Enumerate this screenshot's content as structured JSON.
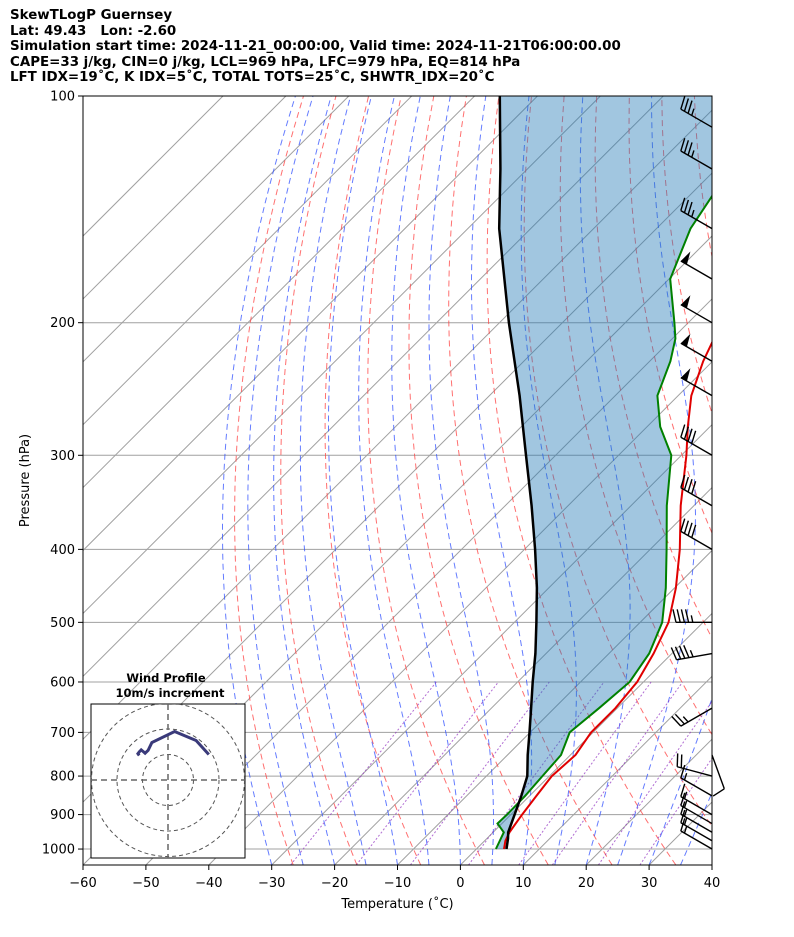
{
  "header": {
    "lines": [
      "SkewTLogP Guernsey",
      "Lat: 49.43   Lon: -2.60",
      "Simulation start time: 2024-11-21_00:00:00, Valid time: 2024-11-21T06:00:00.00",
      "CAPE=33 j/kg, CIN=0 j/kg, LCL=969 hPa, LFC=979 hPa, EQ=814 hPa",
      "LFT IDX=19˚C, K IDX=5˚C, TOTAL TOTS=25˚C, SHWTR_IDX=20˚C"
    ]
  },
  "chart_data": [
    {
      "type": "line",
      "title": "SkewTLogP Guernsey",
      "xlabel": "Temperature (˚C)",
      "ylabel": "Pressure (hPa)",
      "xlim": [
        -60,
        40
      ],
      "ylim": [
        1050,
        100
      ],
      "y_scale": "log",
      "skew": "skew-T (isotherms slanted 45°)",
      "grid": true,
      "xticks": [
        "−60",
        "−50",
        "−40",
        "−30",
        "−20",
        "−10",
        "0",
        "10",
        "20",
        "30",
        "40"
      ],
      "yticks": [
        "100",
        "200",
        "300",
        "400",
        "500",
        "600",
        "700",
        "800",
        "900",
        "1000"
      ],
      "colors": {
        "temperature": "#e00000",
        "dewpoint": "#008000",
        "parcel": "#000000",
        "cape_fill": "#1f77b4",
        "dry_adiabat": "#ff4040",
        "moist_adiabat": "#3050ff",
        "mixing_ratio": "#9030c0",
        "isotherm": "#a0a0a0",
        "hodograph": "#3a3a7a"
      },
      "series": [
        {
          "key": "temperature",
          "points": [
            [
              1000,
              4.4
            ],
            [
              975,
              3.3
            ],
            [
              950,
              2.6
            ],
            [
              925,
              2.2
            ],
            [
              900,
              1.8
            ],
            [
              850,
              1.1
            ],
            [
              800,
              0.4
            ],
            [
              750,
              0.8
            ],
            [
              700,
              -0.3
            ],
            [
              650,
              -0.3
            ],
            [
              600,
              -1.0
            ],
            [
              550,
              -2.9
            ],
            [
              500,
              -5.5
            ],
            [
              450,
              -9.8
            ],
            [
              400,
              -15.3
            ],
            [
              350,
              -22.1
            ],
            [
              300,
              -29.2
            ],
            [
              275,
              -33.5
            ],
            [
              250,
              -37.9
            ],
            [
              225,
              -41.5
            ],
            [
              200,
              -44.7
            ],
            [
              175,
              -46.5
            ],
            [
              150,
              -50.5
            ],
            [
              125,
              -55.2
            ],
            [
              100,
              -60.0
            ]
          ]
        },
        {
          "key": "dewpoint",
          "points": [
            [
              1000,
              3.1
            ],
            [
              950,
              1.7
            ],
            [
              925,
              -0.7
            ],
            [
              900,
              -0.6
            ],
            [
              850,
              -0.7
            ],
            [
              800,
              -1.1
            ],
            [
              750,
              -1.5
            ],
            [
              700,
              -3.7
            ],
            [
              650,
              -2.9
            ],
            [
              600,
              -2.2
            ],
            [
              550,
              -3.6
            ],
            [
              500,
              -6.5
            ],
            [
              450,
              -11.4
            ],
            [
              400,
              -17.4
            ],
            [
              350,
              -24.3
            ],
            [
              300,
              -31.6
            ],
            [
              275,
              -37.9
            ],
            [
              250,
              -43.3
            ],
            [
              225,
              -46.7
            ],
            [
              210,
              -49.5
            ],
            [
              200,
              -52.2
            ],
            [
              175,
              -59.8
            ],
            [
              150,
              -64.6
            ],
            [
              125,
              -67.8
            ],
            [
              100,
              -70.0
            ]
          ]
        },
        {
          "key": "parcel",
          "points": [
            [
              1000,
              4.8
            ],
            [
              969,
              3.4
            ],
            [
              950,
              2.4
            ],
            [
              900,
              0.6
            ],
            [
              850,
              -1.3
            ],
            [
              800,
              -3.5
            ],
            [
              750,
              -6.8
            ],
            [
              700,
              -10.1
            ],
            [
              650,
              -13.7
            ],
            [
              600,
              -17.6
            ],
            [
              550,
              -21.7
            ],
            [
              500,
              -26.5
            ],
            [
              450,
              -31.9
            ],
            [
              400,
              -38.3
            ],
            [
              350,
              -45.8
            ],
            [
              300,
              -54.7
            ],
            [
              250,
              -65.2
            ],
            [
              200,
              -78.5
            ],
            [
              150,
              -95.0
            ],
            [
              125,
              -104.3
            ],
            [
              100,
              -116.0
            ]
          ]
        }
      ],
      "winds": [
        {
          "p": 1000,
          "speed": 15,
          "dir": 300
        },
        {
          "p": 975,
          "speed": 15,
          "dir": 300
        },
        {
          "p": 950,
          "speed": 15,
          "dir": 300
        },
        {
          "p": 925,
          "speed": 15,
          "dir": 300
        },
        {
          "p": 900,
          "speed": 15,
          "dir": 300
        },
        {
          "p": 850,
          "speed": 15,
          "dir": 300
        },
        {
          "p": 800,
          "speed": 20,
          "dir": 285
        },
        {
          "p": 750,
          "speed": 10,
          "dir": 160
        },
        {
          "p": 650,
          "speed": 25,
          "dir": 240
        },
        {
          "p": 550,
          "speed": 45,
          "dir": 260
        },
        {
          "p": 500,
          "speed": 45,
          "dir": 270
        },
        {
          "p": 400,
          "speed": 40,
          "dir": 300
        },
        {
          "p": 350,
          "speed": 40,
          "dir": 300
        },
        {
          "p": 300,
          "speed": 40,
          "dir": 300
        },
        {
          "p": 250,
          "speed": 50,
          "dir": 300
        },
        {
          "p": 225,
          "speed": 50,
          "dir": 300
        },
        {
          "p": 200,
          "speed": 50,
          "dir": 300
        },
        {
          "p": 175,
          "speed": 50,
          "dir": 300
        },
        {
          "p": 150,
          "speed": 35,
          "dir": 300
        },
        {
          "p": 125,
          "speed": 35,
          "dir": 300
        },
        {
          "p": 110,
          "speed": 35,
          "dir": 300
        }
      ]
    },
    {
      "type": "line",
      "title": "Wind Profile",
      "subtitle": "10m/s increment",
      "rings_ms": [
        10,
        20,
        30
      ],
      "points_uv": [
        [
          -11.3,
          9.6
        ],
        [
          -11.8,
          10.3
        ],
        [
          -11.2,
          11.1
        ],
        [
          -10.5,
          11.8
        ],
        [
          -9.8,
          11.2
        ],
        [
          -9.0,
          10.5
        ],
        [
          -7.8,
          11.6
        ],
        [
          -6.3,
          14.7
        ],
        [
          2.6,
          19.0
        ],
        [
          11.0,
          15.5
        ],
        [
          16.0,
          10.0
        ]
      ]
    }
  ]
}
